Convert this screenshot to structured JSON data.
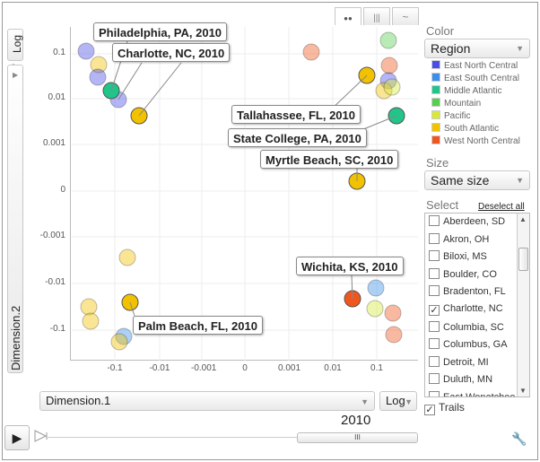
{
  "axes": {
    "y_scale": "Log",
    "y_dimension": "Dimension.2",
    "x_dimension": "Dimension.1",
    "x_scale": "Log",
    "y_ticks": [
      "0.1",
      "0.01",
      "0.001",
      "0",
      "-0.001",
      "-0.01",
      "-0.1"
    ],
    "x_ticks": [
      "-0.1",
      "-0.01",
      "-0.001",
      "0",
      "0.001",
      "0.01",
      "0.1"
    ]
  },
  "tabs": {
    "bubble": "●●",
    "bar": "|||",
    "line": "~"
  },
  "color": {
    "heading": "Color",
    "selected": "Region",
    "legend": [
      {
        "label": "East North Central",
        "color": "#4a4ee8"
      },
      {
        "label": "East South Central",
        "color": "#3b8fe8"
      },
      {
        "label": "Middle Atlantic",
        "color": "#22c48a"
      },
      {
        "label": "Mountain",
        "color": "#55d04e"
      },
      {
        "label": "Pacific",
        "color": "#d7e83a"
      },
      {
        "label": "South Atlantic",
        "color": "#f2c200"
      },
      {
        "label": "West North Central",
        "color": "#f0571f"
      }
    ]
  },
  "size": {
    "heading": "Size",
    "selected": "Same size"
  },
  "select": {
    "heading": "Select",
    "deselect_all": "Deselect all",
    "items": [
      {
        "label": "Aberdeen, SD",
        "checked": false
      },
      {
        "label": "Akron, OH",
        "checked": false
      },
      {
        "label": "Biloxi, MS",
        "checked": false
      },
      {
        "label": "Boulder, CO",
        "checked": false
      },
      {
        "label": "Bradenton, FL",
        "checked": false
      },
      {
        "label": "Charlotte, NC",
        "checked": true
      },
      {
        "label": "Columbia, SC",
        "checked": false
      },
      {
        "label": "Columbus, GA",
        "checked": false
      },
      {
        "label": "Detroit, MI",
        "checked": false
      },
      {
        "label": "Duluth, MN",
        "checked": false
      },
      {
        "label": "East Wenatchee, WA",
        "checked": false
      }
    ]
  },
  "trails": {
    "label": "Trails",
    "checked": true
  },
  "time": {
    "year": "2010",
    "slider_grip": "III"
  },
  "callouts": [
    {
      "text": "Philadelphia, PA, 2010"
    },
    {
      "text": "Charlotte, NC, 2010"
    },
    {
      "text": "Tallahassee, FL, 2010"
    },
    {
      "text": "State College, PA, 2010"
    },
    {
      "text": "Myrtle Beach, SC, 2010"
    },
    {
      "text": "Wichita, KS, 2010"
    },
    {
      "text": "Palm Beach, FL, 2010"
    }
  ],
  "icons": {
    "play": "play-icon",
    "settings": "wrench-icon",
    "check": "✓",
    "dropdown": "▼"
  }
}
